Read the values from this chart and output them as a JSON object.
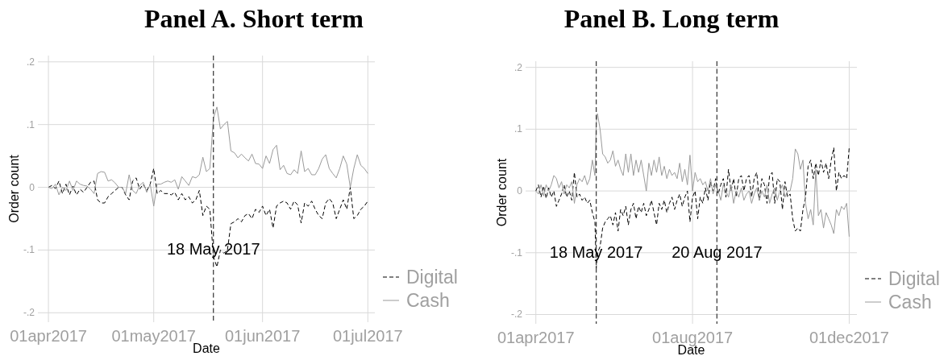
{
  "chart_data": [
    {
      "type": "line",
      "title": "Panel A. Short term",
      "xlabel": "Date",
      "ylabel": "Order count",
      "legend": "bottom right",
      "grid": true,
      "xlim": [
        "2017-03-29",
        "2017-07-03"
      ],
      "ylim": [
        -0.215,
        0.21
      ],
      "xticks": [
        {
          "value": "2017-04-01",
          "label": "01apr2017"
        },
        {
          "value": "2017-05-01",
          "label": "01may2017"
        },
        {
          "value": "2017-06-01",
          "label": "01jun2017"
        },
        {
          "value": "2017-07-01",
          "label": "01jul2017"
        }
      ],
      "yticks": [
        {
          "value": -0.2,
          "label": "-.2"
        },
        {
          "value": -0.1,
          "label": "-.1"
        },
        0,
        {
          "value": 0.1,
          "label": ".1"
        },
        {
          "value": 0.2,
          "label": ".2"
        }
      ],
      "ref_lines": [
        {
          "axis": "x",
          "value": "2017-05-18",
          "label": "18 May 2017",
          "color": "#404040",
          "line_style": "dashed"
        }
      ],
      "x": [
        "2017-04-01",
        "2017-04-02",
        "2017-04-03",
        "2017-04-04",
        "2017-04-05",
        "2017-04-06",
        "2017-04-07",
        "2017-04-08",
        "2017-04-09",
        "2017-04-10",
        "2017-04-11",
        "2017-04-12",
        "2017-04-13",
        "2017-04-14",
        "2017-04-15",
        "2017-04-16",
        "2017-04-17",
        "2017-04-18",
        "2017-04-19",
        "2017-04-20",
        "2017-04-21",
        "2017-04-22",
        "2017-04-23",
        "2017-04-24",
        "2017-04-25",
        "2017-04-26",
        "2017-04-27",
        "2017-04-28",
        "2017-04-29",
        "2017-04-30",
        "2017-05-01",
        "2017-05-02",
        "2017-05-03",
        "2017-05-04",
        "2017-05-05",
        "2017-05-06",
        "2017-05-07",
        "2017-05-08",
        "2017-05-09",
        "2017-05-10",
        "2017-05-11",
        "2017-05-12",
        "2017-05-13",
        "2017-05-14",
        "2017-05-15",
        "2017-05-16",
        "2017-05-17",
        "2017-05-18",
        "2017-05-19",
        "2017-05-20",
        "2017-05-21",
        "2017-05-22",
        "2017-05-23",
        "2017-05-24",
        "2017-05-25",
        "2017-05-26",
        "2017-05-27",
        "2017-05-28",
        "2017-05-29",
        "2017-05-30",
        "2017-05-31",
        "2017-06-01",
        "2017-06-02",
        "2017-06-03",
        "2017-06-04",
        "2017-06-05",
        "2017-06-06",
        "2017-06-07",
        "2017-06-08",
        "2017-06-09",
        "2017-06-10",
        "2017-06-11",
        "2017-06-12",
        "2017-06-13",
        "2017-06-14",
        "2017-06-15",
        "2017-06-16",
        "2017-06-17",
        "2017-06-18",
        "2017-06-19",
        "2017-06-20",
        "2017-06-21",
        "2017-06-22",
        "2017-06-23",
        "2017-06-24",
        "2017-06-25",
        "2017-06-26",
        "2017-06-27",
        "2017-06-28",
        "2017-06-29",
        "2017-06-30",
        "2017-07-01"
      ],
      "series": [
        {
          "name": "Digital",
          "color": "#000000",
          "line_style": "dashed",
          "values": [
            0,
            0.003,
            -0.002,
            0.01,
            -0.01,
            0.005,
            -0.012,
            0.002,
            -0.012,
            -0.003,
            -0.008,
            0,
            0.008,
            0.01,
            -0.02,
            -0.025,
            -0.025,
            -0.015,
            -0.01,
            -0.005,
            0,
            0,
            -0.012,
            -0.02,
            0.01,
            0.015,
            -0.003,
            0.005,
            -0.005,
            0.005,
            0.03,
            -0.01,
            -0.005,
            -0.01,
            -0.01,
            -0.012,
            -0.008,
            -0.02,
            -0.01,
            -0.02,
            -0.015,
            -0.025,
            -0.02,
            -0.005,
            -0.045,
            -0.03,
            -0.035,
            -0.11,
            -0.127,
            -0.1,
            -0.105,
            -0.1,
            -0.058,
            -0.055,
            -0.05,
            -0.055,
            -0.045,
            -0.042,
            -0.05,
            -0.035,
            -0.04,
            -0.03,
            -0.045,
            -0.035,
            -0.065,
            -0.03,
            -0.025,
            -0.022,
            -0.025,
            -0.035,
            -0.022,
            -0.028,
            -0.057,
            -0.025,
            -0.03,
            -0.022,
            -0.035,
            -0.045,
            -0.05,
            -0.025,
            -0.018,
            -0.025,
            -0.05,
            -0.035,
            -0.02,
            -0.035,
            0,
            -0.05,
            -0.045,
            -0.035,
            -0.03,
            -0.022
          ]
        },
        {
          "name": "Cash",
          "color": "#9a9a9a",
          "line_style": "solid",
          "values": [
            0,
            -0.002,
            0.005,
            -0.012,
            0,
            -0.005,
            0.01,
            -0.005,
            0.01,
            0.005,
            0.003,
            0.002,
            -0.003,
            -0.01,
            0.022,
            0.025,
            0.024,
            0.01,
            0.012,
            0.007,
            0,
            0,
            -0.01,
            0.02,
            -0.005,
            -0.01,
            0.003,
            0.008,
            -0.008,
            0.005,
            -0.03,
            0.005,
            0.005,
            0.008,
            0.01,
            0.008,
            0.012,
            -0.003,
            0.017,
            0.01,
            0.003,
            0.017,
            0.015,
            0.02,
            0.048,
            0.025,
            0.03,
            0.11,
            0.128,
            0.093,
            0.1,
            0.105,
            0.058,
            0.055,
            0.047,
            0.053,
            0.047,
            0.042,
            0.053,
            0.038,
            0.037,
            0.03,
            0.05,
            0.038,
            0.06,
            0.067,
            0.028,
            0.035,
            0.022,
            0.02,
            0.028,
            0.022,
            0.058,
            0.025,
            0.03,
            0.02,
            0.02,
            0.03,
            0.045,
            0.052,
            0.03,
            0.022,
            0.015,
            0.03,
            0.05,
            0.037,
            0,
            0.03,
            0.052,
            0.035,
            0.03,
            0.022
          ]
        }
      ]
    },
    {
      "type": "line",
      "title": "Panel B. Long term",
      "xlabel": "Date",
      "ylabel": "Order count",
      "legend": "bottom right",
      "grid": true,
      "xlim": [
        "2017-03-24",
        "2017-12-07"
      ],
      "ylim": [
        -0.215,
        0.21
      ],
      "xticks": [
        {
          "value": "2017-04-01",
          "label": "01apr2017"
        },
        {
          "value": "2017-08-01",
          "label": "01aug2017"
        },
        {
          "value": "2017-12-01",
          "label": "01dec2017"
        }
      ],
      "yticks": [
        {
          "value": -0.2,
          "label": "-.2"
        },
        {
          "value": -0.1,
          "label": "-.1"
        },
        0,
        {
          "value": 0.1,
          "label": ".1"
        },
        {
          "value": 0.2,
          "label": ".2"
        }
      ],
      "ref_lines": [
        {
          "axis": "x",
          "value": "2017-05-18",
          "label": "18 May 2017",
          "color": "#404040",
          "line_style": "dashed"
        },
        {
          "axis": "x",
          "value": "2017-08-20",
          "label": "20 Aug 2017",
          "color": "#404040",
          "line_style": "dashed"
        }
      ],
      "x": [
        "2017-04-01",
        "2017-04-03",
        "2017-04-05",
        "2017-04-07",
        "2017-04-09",
        "2017-04-11",
        "2017-04-13",
        "2017-04-15",
        "2017-04-17",
        "2017-04-19",
        "2017-04-21",
        "2017-04-23",
        "2017-04-25",
        "2017-04-27",
        "2017-04-29",
        "2017-05-01",
        "2017-05-03",
        "2017-05-05",
        "2017-05-07",
        "2017-05-09",
        "2017-05-11",
        "2017-05-13",
        "2017-05-15",
        "2017-05-17",
        "2017-05-18",
        "2017-05-19",
        "2017-05-21",
        "2017-05-23",
        "2017-05-25",
        "2017-05-27",
        "2017-05-29",
        "2017-05-31",
        "2017-06-02",
        "2017-06-04",
        "2017-06-06",
        "2017-06-08",
        "2017-06-10",
        "2017-06-12",
        "2017-06-14",
        "2017-06-16",
        "2017-06-18",
        "2017-06-20",
        "2017-06-22",
        "2017-06-24",
        "2017-06-26",
        "2017-06-28",
        "2017-06-30",
        "2017-07-02",
        "2017-07-04",
        "2017-07-06",
        "2017-07-08",
        "2017-07-10",
        "2017-07-12",
        "2017-07-14",
        "2017-07-16",
        "2017-07-18",
        "2017-07-20",
        "2017-07-22",
        "2017-07-24",
        "2017-07-26",
        "2017-07-28",
        "2017-07-30",
        "2017-08-01",
        "2017-08-03",
        "2017-08-05",
        "2017-08-07",
        "2017-08-09",
        "2017-08-11",
        "2017-08-13",
        "2017-08-15",
        "2017-08-17",
        "2017-08-19",
        "2017-08-21",
        "2017-08-23",
        "2017-08-25",
        "2017-08-27",
        "2017-08-29",
        "2017-08-31",
        "2017-09-02",
        "2017-09-04",
        "2017-09-06",
        "2017-09-08",
        "2017-09-10",
        "2017-09-12",
        "2017-09-14",
        "2017-09-16",
        "2017-09-18",
        "2017-09-20",
        "2017-09-22",
        "2017-09-24",
        "2017-09-26",
        "2017-09-28",
        "2017-09-30",
        "2017-10-02",
        "2017-10-04",
        "2017-10-06",
        "2017-10-08",
        "2017-10-10",
        "2017-10-12",
        "2017-10-14",
        "2017-10-16",
        "2017-10-18",
        "2017-10-20",
        "2017-10-22",
        "2017-10-24",
        "2017-10-26",
        "2017-10-28",
        "2017-10-30",
        "2017-11-01",
        "2017-11-03",
        "2017-11-05",
        "2017-11-07",
        "2017-11-09",
        "2017-11-11",
        "2017-11-13",
        "2017-11-15",
        "2017-11-17",
        "2017-11-19",
        "2017-11-21",
        "2017-11-23",
        "2017-11-25",
        "2017-11-27",
        "2017-11-29",
        "2017-12-01"
      ],
      "series": [
        {
          "name": "Digital",
          "color": "#000000",
          "line_style": "dashed",
          "values": [
            0,
            0.01,
            -0.01,
            0.008,
            -0.012,
            0.005,
            -0.01,
            0,
            -0.025,
            -0.015,
            -0.005,
            0.01,
            -0.01,
            0,
            -0.015,
            0.03,
            -0.01,
            -0.005,
            -0.015,
            -0.01,
            -0.02,
            -0.015,
            -0.035,
            -0.05,
            -0.125,
            -0.1,
            -0.09,
            -0.06,
            -0.05,
            -0.045,
            -0.04,
            -0.055,
            -0.035,
            -0.065,
            -0.03,
            -0.04,
            -0.025,
            -0.055,
            -0.03,
            -0.02,
            -0.045,
            -0.025,
            -0.035,
            -0.02,
            -0.04,
            -0.03,
            -0.015,
            -0.035,
            -0.055,
            -0.02,
            -0.03,
            -0.015,
            -0.035,
            -0.02,
            -0.01,
            -0.03,
            -0.015,
            -0.005,
            -0.025,
            -0.01,
            0,
            -0.05,
            -0.01,
            0,
            -0.045,
            -0.01,
            -0.02,
            0.005,
            -0.015,
            0.015,
            0,
            0.02,
            -0.005,
            0.01,
            0.02,
            -0.01,
            0.035,
            0,
            0.02,
            -0.01,
            0.02,
            0.025,
            0,
            0.02,
            0.025,
            -0.01,
            0.02,
            0.03,
            -0.015,
            0.02,
            0.01,
            -0.02,
            0.025,
            0.03,
            -0.02,
            0.02,
            0.015,
            -0.03,
            0.015,
            -0.01,
            -0.005,
            -0.045,
            -0.065,
            -0.06,
            -0.065,
            -0.03,
            -0.01,
            0.04,
            0.05,
            0.02,
            0.045,
            0.025,
            0.05,
            0.03,
            0.045,
            0.02,
            0.05,
            0.07,
            0,
            0.03,
            0.02,
            0.025,
            0.02,
            0.07
          ]
        },
        {
          "name": "Cash",
          "color": "#9a9a9a",
          "line_style": "solid",
          "values": [
            0,
            -0.005,
            0.01,
            -0.008,
            0.01,
            0,
            0.01,
            0.025,
            0.02,
            0.005,
            0.015,
            -0.005,
            0.01,
            0.005,
            0.015,
            -0.02,
            0.01,
            0.02,
            0.015,
            0.025,
            0.01,
            0.02,
            0.05,
            0.025,
            0.11,
            0.125,
            0.1,
            0.06,
            0.055,
            0.045,
            0.05,
            0.065,
            0.04,
            0.05,
            0.035,
            0.025,
            0.06,
            0.03,
            0.06,
            0.025,
            0.05,
            0.03,
            0.05,
            0.025,
            0,
            0.045,
            0.025,
            0.05,
            0.03,
            0.055,
            0.025,
            0.04,
            0.02,
            0.035,
            0.025,
            0.03,
            0.02,
            0.045,
            0.015,
            0.035,
            0.01,
            0.058,
            0,
            0.03,
            0.015,
            0.02,
            0.01,
            0.015,
            0,
            0.02,
            -0.005,
            0.01,
            0,
            -0.015,
            0.01,
            0,
            -0.01,
            0.01,
            -0.02,
            0,
            -0.01,
            0.005,
            -0.015,
            -0.005,
            0,
            -0.02,
            -0.005,
            0.005,
            -0.015,
            0,
            -0.01,
            0.01,
            -0.02,
            -0.005,
            0.005,
            -0.015,
            0,
            0.01,
            -0.01,
            0,
            0,
            0.02,
            0.068,
            0.06,
            0.035,
            0.05,
            -0.02,
            -0.045,
            -0.03,
            -0.055,
            0.035,
            -0.04,
            -0.03,
            -0.06,
            -0.035,
            -0.045,
            -0.055,
            -0.069,
            -0.03,
            -0.04,
            -0.025,
            -0.03,
            -0.02,
            -0.074
          ]
        }
      ]
    }
  ]
}
